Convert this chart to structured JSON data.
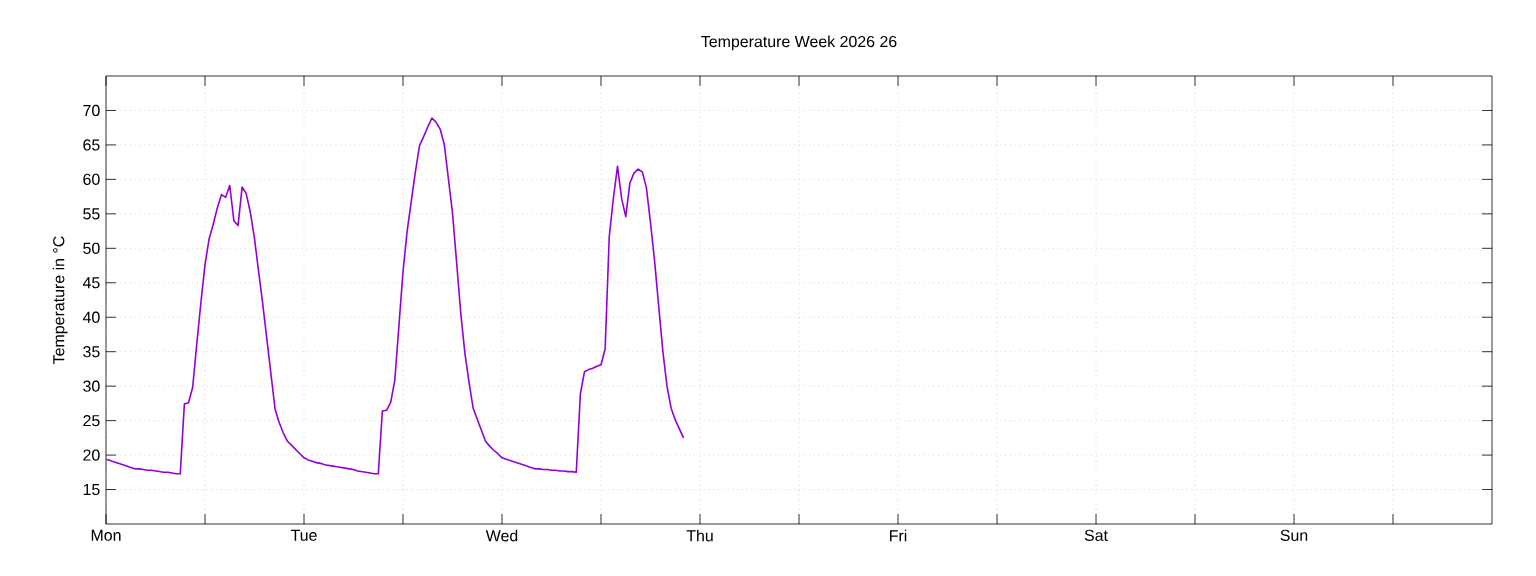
{
  "chart_data": {
    "type": "line",
    "title": "Temperature Week 2026 26",
    "ylabel": "Temperature in °C",
    "ylim": [
      10,
      75
    ],
    "yticks": [
      15,
      20,
      25,
      30,
      35,
      40,
      45,
      50,
      55,
      60,
      65,
      70
    ],
    "grid": true,
    "marker": "none",
    "line_style": "solid",
    "categories": [
      "Mon",
      null,
      null,
      null,
      null,
      null,
      null,
      null,
      null,
      null,
      null,
      null,
      null,
      null,
      null,
      null,
      null,
      null,
      null,
      null,
      null,
      null,
      null,
      null,
      null,
      null,
      null,
      null,
      null,
      null,
      null,
      null,
      null,
      null,
      null,
      null,
      null,
      null,
      null,
      null,
      null,
      null,
      null,
      null,
      null,
      null,
      null,
      null,
      "Tue",
      null,
      null,
      null,
      null,
      null,
      null,
      null,
      null,
      null,
      null,
      null,
      null,
      null,
      null,
      null,
      null,
      null,
      null,
      null,
      null,
      null,
      null,
      null,
      null,
      null,
      null,
      null,
      null,
      null,
      null,
      null,
      null,
      null,
      null,
      null,
      null,
      null,
      null,
      null,
      null,
      null,
      null,
      null,
      null,
      null,
      null,
      null,
      "Wed",
      null,
      null,
      null,
      null,
      null,
      null,
      null,
      null,
      null,
      null,
      null,
      null,
      null,
      null,
      null,
      null,
      null,
      null,
      null,
      null,
      null,
      null,
      null,
      null,
      null,
      null,
      null,
      null,
      null,
      null,
      null,
      null,
      null,
      null,
      null,
      null,
      null,
      null,
      null,
      null,
      null,
      null,
      null,
      null,
      null,
      null,
      null,
      "Thu",
      null,
      null,
      null,
      null,
      null,
      null,
      null,
      null,
      null,
      null,
      null,
      null,
      null,
      null,
      null,
      null,
      null,
      null,
      null,
      null,
      null,
      null,
      null,
      null,
      null,
      null,
      null,
      null,
      null,
      null,
      null,
      null,
      null,
      null,
      null,
      null,
      null,
      null,
      null,
      null,
      null,
      null,
      null,
      null,
      null,
      null,
      null,
      "Fri",
      null,
      null,
      null,
      null,
      null,
      null,
      null,
      null,
      null,
      null,
      null,
      null,
      null,
      null,
      null,
      null,
      null,
      null,
      null,
      null,
      null,
      null,
      null,
      null,
      null,
      null,
      null,
      null,
      null,
      null,
      null,
      null,
      null,
      null,
      null,
      null,
      null,
      null,
      null,
      null,
      null,
      null,
      null,
      null,
      null,
      null,
      null,
      "Sat",
      null,
      null,
      null,
      null,
      null,
      null,
      null,
      null,
      null,
      null,
      null,
      null,
      null,
      null,
      null,
      null,
      null,
      null,
      null,
      null,
      null,
      null,
      null,
      null,
      null,
      null,
      null,
      null,
      null,
      null,
      null,
      null,
      null,
      null,
      null,
      null,
      null,
      null,
      null,
      null,
      null,
      null,
      null,
      null,
      null,
      null,
      null,
      "Sun",
      null,
      null,
      null,
      null,
      null,
      null,
      null,
      null,
      null,
      null,
      null,
      null,
      null,
      null,
      null,
      null,
      null,
      null,
      null,
      null,
      null,
      null,
      null,
      null,
      null,
      null,
      null,
      null,
      null,
      null,
      null,
      null,
      null,
      null,
      null,
      null,
      null,
      null,
      null,
      null,
      null,
      null,
      null,
      null,
      null,
      null,
      null
    ],
    "series": [
      {
        "color": "#9400d3",
        "values": [
          19.4,
          19.2,
          19.0,
          18.8,
          18.6,
          18.4,
          18.2,
          18.0,
          18.0,
          17.9,
          17.8,
          17.8,
          17.7,
          17.6,
          17.5,
          17.5,
          17.4,
          17.3,
          17.3,
          27.4,
          27.6,
          29.8,
          36.1,
          42.1,
          47.6,
          51.4,
          53.5,
          55.9,
          57.8,
          57.4,
          59.1,
          54.0,
          53.3,
          58.9,
          57.9,
          55.2,
          51.4,
          46.6,
          41.9,
          36.8,
          31.7,
          26.6,
          24.7,
          23.2,
          22.0,
          21.4,
          20.8,
          20.2,
          19.6,
          19.3,
          19.1,
          18.9,
          18.8,
          18.6,
          18.5,
          18.4,
          18.3,
          18.2,
          18.1,
          18.0,
          17.9,
          17.7,
          17.6,
          17.5,
          17.4,
          17.3,
          17.3,
          26.4,
          26.5,
          27.6,
          30.8,
          38.7,
          46.6,
          52.5,
          56.8,
          61.1,
          64.9,
          66.2,
          67.6,
          68.9,
          68.3,
          67.3,
          65.1,
          60.1,
          55.1,
          47.9,
          40.6,
          34.8,
          30.6,
          26.8,
          25.2,
          23.6,
          22.0,
          21.3,
          20.7,
          20.2,
          19.6,
          19.4,
          19.2,
          19.0,
          18.8,
          18.6,
          18.4,
          18.2,
          18.0,
          18.0,
          17.9,
          17.9,
          17.8,
          17.8,
          17.7,
          17.7,
          17.6,
          17.6,
          17.5,
          28.9,
          32.1,
          32.4,
          32.6,
          32.9,
          33.1,
          35.4,
          51.7,
          57.3,
          61.9,
          57.2,
          54.6,
          59.5,
          60.9,
          61.5,
          61.1,
          58.8,
          53.7,
          48.1,
          41.5,
          35.0,
          30.0,
          26.8,
          25.1,
          23.8,
          22.5,
          null,
          null,
          null,
          null,
          null,
          null,
          null,
          null,
          null,
          null,
          null,
          null,
          null,
          null,
          null,
          null,
          null,
          null,
          null,
          null,
          null,
          null,
          null,
          null,
          null,
          null,
          null,
          null,
          null,
          null,
          null,
          null,
          null,
          null,
          null,
          null,
          null,
          null,
          null,
          null,
          null,
          null,
          null,
          null,
          null,
          null,
          null,
          null,
          null,
          null,
          null,
          null,
          null,
          null,
          null,
          null,
          null,
          null,
          null,
          null,
          null,
          null,
          null,
          null,
          null,
          null,
          null,
          null,
          null,
          null,
          null,
          null,
          null,
          null,
          null,
          null,
          null,
          null,
          null,
          null,
          null,
          null,
          null,
          null,
          null,
          null,
          null,
          null,
          null,
          null,
          null,
          null,
          null,
          null,
          null,
          null,
          null,
          null,
          null,
          null,
          null,
          null,
          null,
          null,
          null,
          null,
          null,
          null,
          null,
          null,
          null,
          null,
          null,
          null,
          null,
          null,
          null,
          null,
          null,
          null,
          null,
          null,
          null,
          null,
          null,
          null,
          null,
          null,
          null,
          null,
          null,
          null,
          null,
          null,
          null,
          null,
          null,
          null,
          null,
          null,
          null,
          null,
          null,
          null,
          null,
          null,
          null,
          null,
          null,
          null,
          null,
          null,
          null,
          null,
          null,
          null,
          null,
          null,
          null,
          null,
          null,
          null,
          null,
          null,
          null,
          null,
          null,
          null,
          null,
          null,
          null,
          null,
          null,
          null,
          null,
          null,
          null,
          null,
          null,
          null,
          null,
          null,
          null,
          null,
          null,
          null,
          null,
          null,
          null,
          null,
          null,
          null,
          null,
          null,
          null
        ]
      }
    ]
  }
}
